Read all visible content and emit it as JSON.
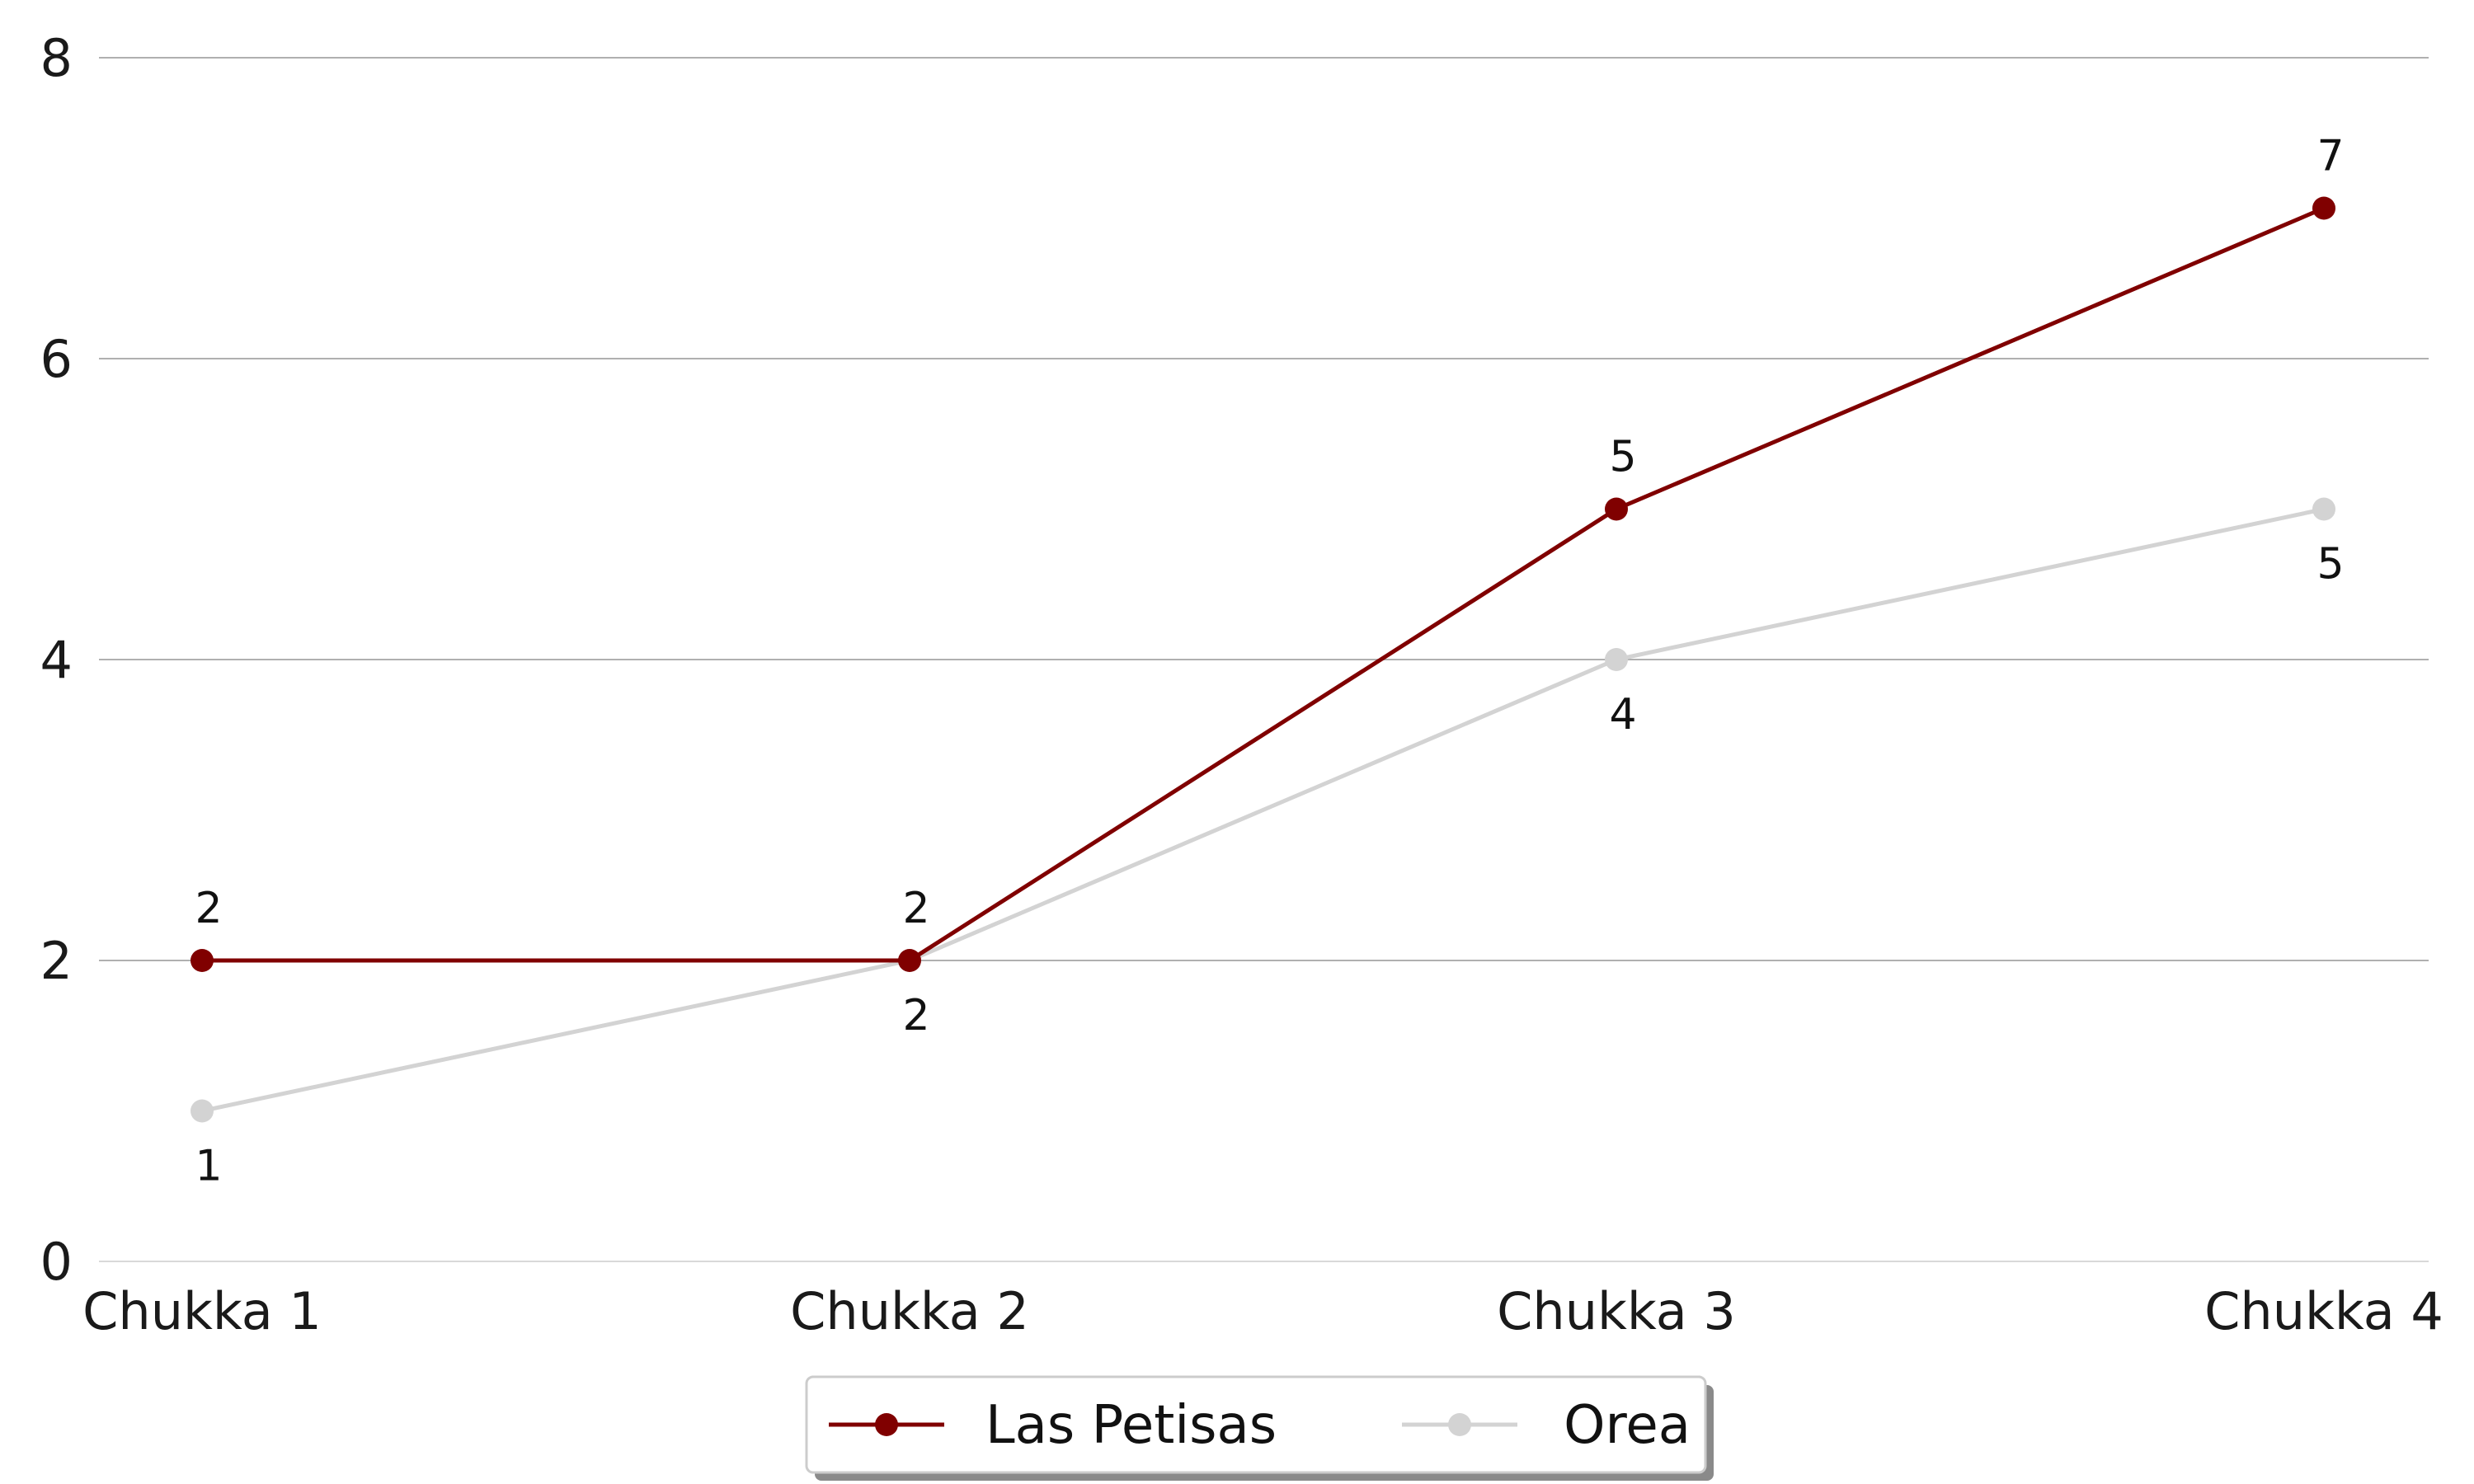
{
  "chart_data": {
    "type": "line",
    "title": "",
    "xlabel": "",
    "ylabel": "",
    "categories": [
      "Chukka 1",
      "Chukka 2",
      "Chukka 3",
      "Chukka 4"
    ],
    "ylim": [
      0,
      8
    ],
    "yticks": [
      0,
      2,
      4,
      6,
      8
    ],
    "grid": "horizontal",
    "legend_position": "bottom-center",
    "series": [
      {
        "name": "Las Petisas",
        "color": "#800000",
        "values": [
          2,
          2,
          5,
          7
        ],
        "label_side": "above"
      },
      {
        "name": "Orea",
        "color": "#d3d3d3",
        "values": [
          1,
          2,
          4,
          5
        ],
        "label_side": "below"
      }
    ]
  }
}
